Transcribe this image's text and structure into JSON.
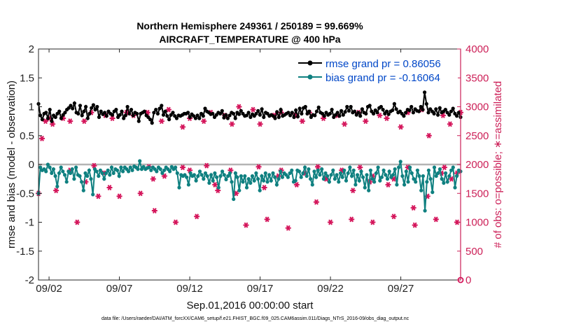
{
  "chart_data": {
    "type": "line",
    "title_line1": "Northern Hemisphere 249361 / 250189 = 99.669%",
    "title_line2": "AIRCRAFT_TEMPERATURE @ 400 hPa",
    "xlabel": "Sep.01,2016 00:00:00 start",
    "ylabel_left": "rmse and bias (model - observation)",
    "ylabel_right": "# of obs: o=possible; ∗=assimilated",
    "x_tick_labels": [
      "09/02",
      "09/07",
      "09/12",
      "09/17",
      "09/22",
      "09/27"
    ],
    "x_tick_days": [
      2,
      7,
      12,
      17,
      22,
      27
    ],
    "xlim_days": [
      1.25,
      31.25
    ],
    "y_left_ticks": [
      "2",
      "1.5",
      "1",
      "0.5",
      "0",
      "-0.5",
      "-1",
      "-1.5",
      "-2"
    ],
    "ylim_left": [
      -2,
      2
    ],
    "y_right_ticks": [
      "4000",
      "3500",
      "3000",
      "2500",
      "2000",
      "1500",
      "1000",
      "500",
      "0"
    ],
    "ylim_right": [
      0,
      4000
    ],
    "colors": {
      "rmse": "#000000",
      "bias": "#0f8080",
      "obs": "#d4145a",
      "legend_text": "#0047c8",
      "right_axis": "#cc1f57",
      "zero_line": "#b4b4b4"
    },
    "series": [
      {
        "name": "rmse grand pr = 0.86056",
        "values": [
          1.05,
          0.85,
          0.78,
          0.88,
          0.9,
          0.8,
          0.95,
          0.75,
          0.85,
          0.82,
          0.88,
          0.92,
          0.8,
          0.86,
          0.9,
          0.95,
          0.98,
          1.02,
          0.97,
          1.06,
          0.9,
          0.88,
          1.02,
          0.85,
          0.92,
          1.0,
          0.8,
          0.88,
          0.98,
          1.03,
          0.95,
          1.0,
          0.82,
          0.92,
          0.87,
          0.9,
          0.84,
          0.92,
          0.88,
          0.86,
          0.92,
          0.95,
          0.82,
          0.86,
          0.92,
          0.8,
          0.85,
          1.0,
          0.88,
          0.95,
          0.85,
          0.9,
          0.88,
          0.75,
          0.88,
          0.9,
          0.92,
          0.85,
          0.82,
          0.78,
          0.72,
          0.9,
          0.95,
          0.88,
          0.97,
          1.02,
          0.86,
          0.92,
          0.84,
          0.78,
          0.86,
          0.9,
          0.84,
          0.8,
          0.85,
          0.84,
          0.86,
          0.88,
          0.88,
          0.9,
          0.82,
          0.87,
          0.84,
          0.8,
          0.85,
          0.8,
          0.88,
          0.84,
          0.97,
          0.92,
          0.9,
          0.87,
          0.88,
          0.82,
          0.86,
          0.9,
          0.88,
          0.93,
          0.81,
          0.86,
          0.8,
          0.85,
          0.9,
          0.88,
          0.8,
          0.9,
          0.87,
          0.93,
          0.88,
          0.84,
          0.85,
          0.9,
          0.82,
          0.87,
          0.84,
          0.88,
          0.93,
          0.86,
          0.96,
          0.82,
          0.9,
          0.88,
          0.84,
          0.86,
          0.84,
          0.8,
          0.91,
          0.82,
          0.95,
          0.84,
          0.86,
          0.88,
          0.9,
          0.85,
          0.9,
          0.82,
          0.94,
          0.83,
          0.97,
          0.88,
          0.98,
          1.0,
          0.88,
          0.92,
          0.82,
          0.86,
          0.85,
          0.92,
          0.99,
          0.9,
          0.88,
          0.84,
          0.9,
          0.86,
          0.88,
          0.95,
          0.82,
          0.86,
          0.9,
          0.84,
          0.93,
          0.86,
          0.91,
          1.0,
          0.93,
          1.0,
          0.9,
          0.92,
          0.86,
          0.9,
          0.84,
          0.96,
          0.9,
          0.88,
          1.0,
          1.02,
          0.92,
          0.88,
          0.94,
          0.9,
          0.98,
          1.0,
          0.95,
          0.88,
          0.92,
          0.87,
          0.92,
          0.94,
          1.05,
          0.96,
          0.9,
          0.92,
          0.88,
          0.84,
          0.9,
          0.95,
          0.94,
          1.0,
          0.9,
          0.96,
          0.93,
          0.92,
          1.0,
          0.95,
          1.25,
          1.05,
          0.9,
          0.96,
          0.92,
          0.88,
          0.96,
          0.86,
          0.98,
          0.9,
          0.92,
          0.95,
          0.9,
          0.86,
          0.92,
          0.97,
          0.88,
          0.84,
          0.9,
          0.82
        ]
      },
      {
        "name": "bias grand pr = -0.16064",
        "values": [
          -0.5,
          -0.05,
          -0.1,
          -0.08,
          -0.12,
          0.0,
          -0.05,
          -0.15,
          -0.08,
          -0.2,
          -0.38,
          -0.15,
          -0.05,
          -0.12,
          -0.18,
          -0.3,
          -0.12,
          -0.15,
          -0.08,
          -0.25,
          -0.05,
          -0.18,
          -0.2,
          -0.3,
          -0.45,
          -0.15,
          -0.2,
          -0.1,
          -0.25,
          -0.52,
          -0.08,
          -0.12,
          -0.2,
          -0.1,
          -0.15,
          -0.25,
          -0.15,
          -0.1,
          -0.18,
          -0.05,
          -0.15,
          -0.08,
          -0.1,
          -0.2,
          -0.05,
          -0.12,
          -0.05,
          -0.08,
          -0.12,
          -0.05,
          -0.1,
          -0.03,
          -0.05,
          -0.08,
          0.06,
          -0.08,
          -0.04,
          -0.08,
          -0.06,
          -0.05,
          -0.1,
          -0.05,
          -0.08,
          -0.12,
          -0.05,
          -0.08,
          -0.15,
          -0.1,
          -0.05,
          -0.08,
          -0.12,
          -0.04,
          -0.08,
          -0.05,
          -0.15,
          -0.4,
          -0.18,
          -0.2,
          -0.18,
          -0.22,
          -0.35,
          -0.15,
          -0.2,
          -0.18,
          -0.28,
          -0.2,
          -0.12,
          -0.18,
          -0.25,
          -0.15,
          -0.2,
          -0.32,
          -0.18,
          -0.28,
          -0.15,
          -0.22,
          -0.4,
          -0.2,
          -0.12,
          -0.18,
          -0.26,
          -0.2,
          -0.15,
          -0.3,
          -0.6,
          -0.15,
          -0.22,
          -0.45,
          -0.2,
          -0.3,
          -0.2,
          -0.4,
          -0.25,
          -0.32,
          -0.2,
          -0.28,
          -0.15,
          -0.25,
          -0.45,
          -0.2,
          -0.28,
          -0.15,
          -0.3,
          -0.18,
          -0.28,
          -0.15,
          -0.22,
          -0.35,
          -0.25,
          -0.12,
          -0.22,
          -0.15,
          -0.18,
          -0.22,
          -0.15,
          -0.1,
          -0.3,
          -0.28,
          -0.1,
          -0.12,
          -0.22,
          -0.15,
          -0.05,
          -0.2,
          -0.08,
          -0.25,
          -0.35,
          -0.12,
          -0.22,
          -0.1,
          -0.18,
          -0.08,
          -0.25,
          -0.15,
          -0.2,
          -0.3,
          -0.18,
          -0.1,
          -0.25,
          -0.18,
          -0.3,
          -0.15,
          -0.22,
          -0.1,
          -0.28,
          -0.15,
          -0.05,
          -0.2,
          -0.1,
          -0.35,
          -0.18,
          -0.28,
          -0.12,
          -0.22,
          -0.4,
          -0.18,
          -0.45,
          -0.1,
          -0.25,
          -0.3,
          -0.15,
          -0.05,
          -0.28,
          -0.22,
          -0.1,
          -0.18,
          -0.25,
          -0.12,
          -0.22,
          -0.18,
          -0.08,
          -0.35,
          -0.05,
          0.05,
          -0.2,
          -0.35,
          -0.12,
          -0.3,
          -0.05,
          -0.15,
          -0.25,
          -0.3,
          -0.1,
          -0.2,
          -0.45,
          -0.2,
          -0.8,
          -0.3,
          -0.1,
          -0.25,
          -0.48,
          -0.05,
          -0.2,
          -0.15,
          -0.08,
          -0.25,
          -0.32,
          -0.15,
          -0.3,
          -0.2,
          -0.1,
          -0.05,
          -0.4,
          -0.2,
          -0.1,
          -0.12
        ]
      }
    ],
    "obs_assimilated": [
      [
        1.25,
        1500
      ],
      [
        1.5,
        2450
      ],
      [
        1.75,
        2750
      ],
      [
        2.0,
        2800
      ],
      [
        2.25,
        2700
      ],
      [
        2.5,
        1550
      ],
      [
        3.0,
        2800
      ],
      [
        3.5,
        2750
      ],
      [
        4.0,
        1000
      ],
      [
        4.5,
        2750
      ],
      [
        5.0,
        2900
      ],
      [
        5.5,
        1450
      ],
      [
        6.0,
        2850
      ],
      [
        6.5,
        2800
      ],
      [
        7.0,
        1450
      ],
      [
        7.5,
        2900
      ],
      [
        8.0,
        2850
      ],
      [
        8.5,
        1500
      ],
      [
        9.0,
        2900
      ],
      [
        9.5,
        1200
      ],
      [
        10.0,
        2750
      ],
      [
        10.5,
        2950
      ],
      [
        11.0,
        1000
      ],
      [
        11.5,
        2650
      ],
      [
        12.0,
        2800
      ],
      [
        12.5,
        1100
      ],
      [
        13.0,
        2750
      ],
      [
        13.5,
        2900
      ],
      [
        14.0,
        1550
      ],
      [
        14.5,
        2850
      ],
      [
        15.0,
        2700
      ],
      [
        15.5,
        3000
      ],
      [
        16.0,
        950
      ],
      [
        16.5,
        2950
      ],
      [
        17.0,
        2700
      ],
      [
        17.5,
        1050
      ],
      [
        18.0,
        2850
      ],
      [
        18.5,
        2900
      ],
      [
        19.0,
        900
      ],
      [
        19.5,
        2850
      ],
      [
        20.0,
        2750
      ],
      [
        20.5,
        2900
      ],
      [
        21.0,
        1350
      ],
      [
        21.5,
        2800
      ],
      [
        22.0,
        1000
      ],
      [
        22.5,
        2850
      ],
      [
        23.0,
        2700
      ],
      [
        23.5,
        1050
      ],
      [
        24.0,
        2900
      ],
      [
        24.5,
        2750
      ],
      [
        25.0,
        1000
      ],
      [
        25.5,
        2850
      ],
      [
        26.0,
        2800
      ],
      [
        26.5,
        1100
      ],
      [
        27.0,
        2650
      ],
      [
        27.5,
        2900
      ],
      [
        28.0,
        950
      ],
      [
        28.5,
        2950
      ],
      [
        29.0,
        2500
      ],
      [
        29.5,
        1050
      ],
      [
        30.0,
        2850
      ],
      [
        30.5,
        2700
      ],
      [
        31.0,
        1000
      ],
      [
        31.25,
        2900
      ],
      [
        3.5,
        1900
      ],
      [
        5.2,
        1980
      ],
      [
        9.1,
        1960
      ],
      [
        11.5,
        1950
      ],
      [
        13.2,
        1980
      ],
      [
        14.9,
        1900
      ],
      [
        16.9,
        1960
      ],
      [
        18.5,
        1900
      ],
      [
        20.2,
        1850
      ],
      [
        21.1,
        1960
      ],
      [
        22.8,
        1900
      ],
      [
        24.1,
        1950
      ],
      [
        25.0,
        1800
      ],
      [
        26.5,
        1750
      ],
      [
        27.5,
        1950
      ],
      [
        28.9,
        1450
      ],
      [
        30.1,
        1950
      ],
      [
        31.0,
        1850
      ],
      [
        4.6,
        1700
      ],
      [
        5.9,
        1850
      ],
      [
        6.3,
        1600
      ],
      [
        9.4,
        1750
      ],
      [
        10.2,
        1800
      ],
      [
        12.0,
        1900
      ],
      [
        13.8,
        1650
      ],
      [
        15.3,
        1500
      ],
      [
        17.3,
        1600
      ],
      [
        18.3,
        1800
      ],
      [
        19.6,
        1650
      ],
      [
        21.7,
        1750
      ],
      [
        23.6,
        1550
      ],
      [
        24.8,
        1700
      ],
      [
        26.1,
        1650
      ],
      [
        27.9,
        1250
      ],
      [
        29.9,
        1850
      ],
      [
        30.6,
        1750
      ]
    ],
    "obs_possible_day": 31.25,
    "obs_possible_value": 0,
    "footer": "data file: /Users/raeder/DAI/ATM_forcXX/CAM6_setup/f.e21.FHIST_BGC.f09_025.CAM6assim.011/Diags_NTrS_2016-09/obs_diag_output.nc"
  }
}
